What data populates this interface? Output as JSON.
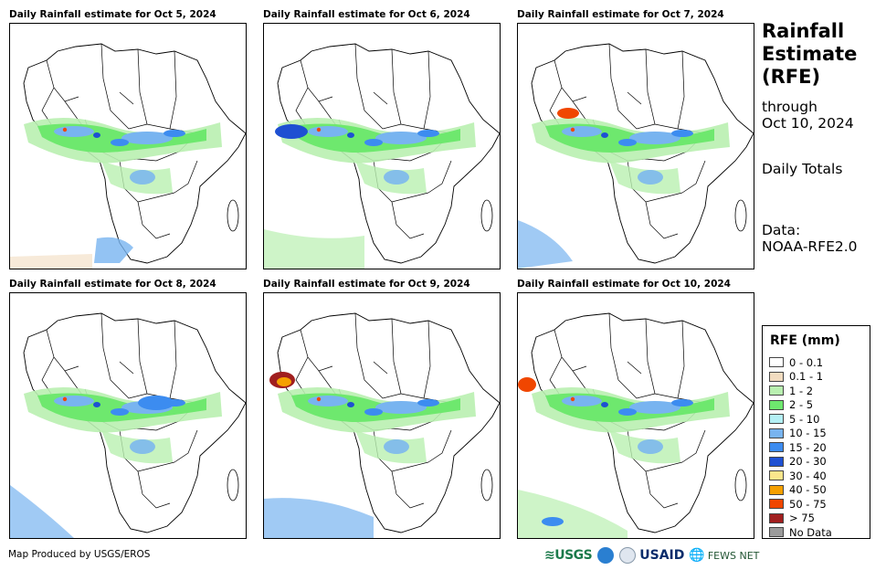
{
  "panels": [
    {
      "title": "Daily Rainfall estimate for Oct 5, 2024"
    },
    {
      "title": "Daily Rainfall estimate for Oct 6, 2024"
    },
    {
      "title": "Daily Rainfall estimate for Oct 7, 2024"
    },
    {
      "title": "Daily Rainfall estimate for Oct 8, 2024"
    },
    {
      "title": "Daily Rainfall estimate for Oct 9, 2024"
    },
    {
      "title": "Daily Rainfall estimate for Oct 10, 2024"
    }
  ],
  "sidebar": {
    "title_line1": "Rainfall",
    "title_line2": "Estimate",
    "title_line3": "(RFE)",
    "through_label": "through",
    "through_date": "Oct 10, 2024",
    "totals_label": "Daily Totals",
    "data_label": "Data:",
    "data_source": "NOAA-RFE2.0"
  },
  "legend": {
    "title": "RFE (mm)",
    "items": [
      {
        "label": "0 - 0.1",
        "color": "#ffffff"
      },
      {
        "label": "0.1 - 1",
        "color": "#f2dcc0"
      },
      {
        "label": "1 - 2",
        "color": "#b9f0b0"
      },
      {
        "label": "2 - 5",
        "color": "#6ee86e"
      },
      {
        "label": "5 - 10",
        "color": "#b4f0f5"
      },
      {
        "label": "10 - 15",
        "color": "#78b4f0"
      },
      {
        "label": "15 - 20",
        "color": "#3c8cf0"
      },
      {
        "label": "20 - 30",
        "color": "#1e50d2"
      },
      {
        "label": "30 - 40",
        "color": "#fae68c"
      },
      {
        "label": "40 - 50",
        "color": "#f5a000"
      },
      {
        "label": "50 - 75",
        "color": "#f04600"
      },
      {
        "label": "> 75",
        "color": "#a01e1e"
      },
      {
        "label": "No Data",
        "color": "#9b9b9b"
      }
    ]
  },
  "footer": {
    "credit": "Map Produced by USGS/EROS",
    "logo_usgs": "≋USGS",
    "logo_usaid": "USAID",
    "logo_fews": "FEWS NET"
  }
}
